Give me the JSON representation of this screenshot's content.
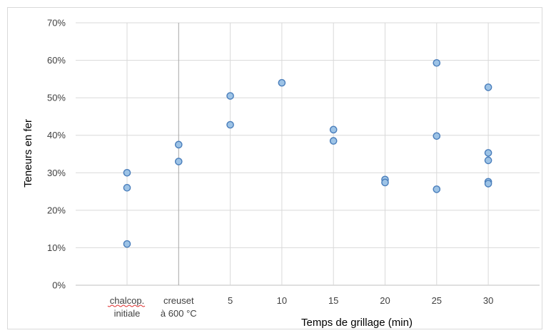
{
  "chart_data": {
    "type": "scatter",
    "xlabel": "Temps de grillage (min)",
    "ylabel": "Teneurs en fer",
    "ylim": [
      0,
      0.7
    ],
    "y_ticks": [
      "0%",
      "10%",
      "20%",
      "30%",
      "40%",
      "50%",
      "60%",
      "70%"
    ],
    "categories": [
      [
        "chalcop.",
        "initiale"
      ],
      [
        "creuset",
        "à 600 °C"
      ],
      [
        "5"
      ],
      [
        "10"
      ],
      [
        "15"
      ],
      [
        "20"
      ],
      [
        "25"
      ],
      [
        "30"
      ]
    ],
    "grid": true,
    "point_color": "#9dc3e6",
    "point_stroke": "#4a7ebb",
    "points": [
      {
        "x": 0,
        "y": 0.3
      },
      {
        "x": 0,
        "y": 0.26
      },
      {
        "x": 0,
        "y": 0.11
      },
      {
        "x": 1,
        "y": 0.375
      },
      {
        "x": 1,
        "y": 0.33
      },
      {
        "x": 2,
        "y": 0.505
      },
      {
        "x": 2,
        "y": 0.428
      },
      {
        "x": 3,
        "y": 0.54
      },
      {
        "x": 4,
        "y": 0.415
      },
      {
        "x": 4,
        "y": 0.385
      },
      {
        "x": 5,
        "y": 0.282
      },
      {
        "x": 5,
        "y": 0.274
      },
      {
        "x": 6,
        "y": 0.593
      },
      {
        "x": 6,
        "y": 0.398
      },
      {
        "x": 6,
        "y": 0.256
      },
      {
        "x": 7,
        "y": 0.528
      },
      {
        "x": 7,
        "y": 0.353
      },
      {
        "x": 7,
        "y": 0.333
      },
      {
        "x": 7,
        "y": 0.276
      },
      {
        "x": 7,
        "y": 0.271
      }
    ]
  }
}
